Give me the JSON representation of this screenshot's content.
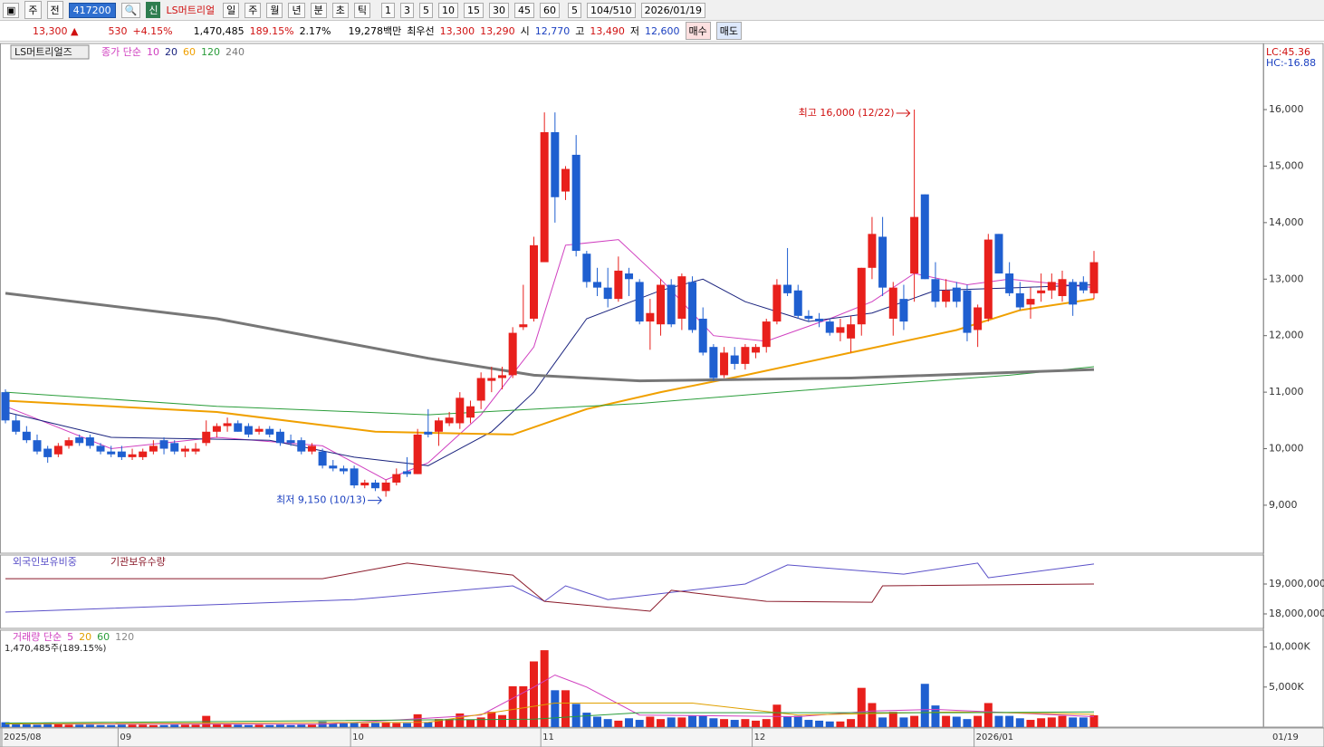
{
  "toolbar": {
    "market": "주",
    "prev": "전",
    "code": "417200",
    "badge": "신",
    "name": "LS머트리얼",
    "periods": [
      "일",
      "주",
      "월",
      "년",
      "분",
      "초",
      "틱"
    ],
    "intervals": [
      "1",
      "3",
      "5",
      "10",
      "15",
      "30",
      "45",
      "60"
    ],
    "count": "5",
    "range": "104/510",
    "date": "2026/01/19"
  },
  "quote": {
    "price": "13,300 ▲",
    "change": "530",
    "rate": "+4.15%",
    "volume": "1,470,485",
    "volume_ratio": "189.15%",
    "turnover": "2.17%",
    "amount": "19,278백만",
    "best_label": "최우선",
    "ask": "13,300",
    "bid": "13,290",
    "open_label": "시",
    "open": "12,770",
    "high_label": "고",
    "high": "13,490",
    "low_label": "저",
    "low": "12,600",
    "buy": "매수",
    "sell": "매도"
  },
  "chart_data": {
    "type": "candlestick",
    "title": "LS머트리얼즈",
    "ma_label": "종가 단순",
    "lc": "LC:45.36",
    "hc": "HC:-16.88",
    "x_labels": [
      {
        "index": 0,
        "label": "2025/08"
      },
      {
        "index": 11,
        "label": "09"
      },
      {
        "index": 33,
        "label": "10"
      },
      {
        "index": 51,
        "label": "11"
      },
      {
        "index": 71,
        "label": "12"
      },
      {
        "index": 92,
        "label": "2026/01"
      }
    ],
    "last_date": "01/19",
    "annotations": [
      {
        "text": "최고 16,000 (12/22)",
        "index": 86,
        "value": 16000,
        "side": "left"
      },
      {
        "text": "최저 9,150 (10/13)",
        "index": 36,
        "value": 9150,
        "side": "left"
      }
    ],
    "ylim": [
      8150,
      17170
    ],
    "yticks": [
      {
        "value": 9000,
        "label": "9,000"
      },
      {
        "value": 10000,
        "label": "10,000"
      },
      {
        "value": 11000,
        "label": "11,000"
      },
      {
        "value": 12000,
        "label": "12,000"
      },
      {
        "value": 13000,
        "label": "13,000"
      },
      {
        "value": 14000,
        "label": "14,000"
      },
      {
        "value": 15000,
        "label": "15,000"
      },
      {
        "value": 16000,
        "label": "16,000"
      }
    ],
    "up_color": "#e8201c",
    "down_color": "#1f5fd0",
    "ohlc": [
      [
        11000,
        11050,
        10450,
        10500
      ],
      [
        10500,
        10600,
        10250,
        10300
      ],
      [
        10300,
        10400,
        10100,
        10150
      ],
      [
        10150,
        10250,
        9900,
        9950
      ],
      [
        10000,
        10050,
        9750,
        9850
      ],
      [
        9900,
        10100,
        9850,
        10050
      ],
      [
        10050,
        10200,
        10000,
        10150
      ],
      [
        10200,
        10250,
        10050,
        10100
      ],
      [
        10200,
        10250,
        10000,
        10050
      ],
      [
        10050,
        10100,
        9900,
        9950
      ],
      [
        9950,
        10050,
        9850,
        9900
      ],
      [
        9950,
        10050,
        9800,
        9850
      ],
      [
        9850,
        10000,
        9800,
        9900
      ],
      [
        9850,
        10000,
        9800,
        9950
      ],
      [
        9950,
        10150,
        9900,
        10050
      ],
      [
        10150,
        10200,
        9900,
        10000
      ],
      [
        10100,
        10150,
        9900,
        9950
      ],
      [
        9950,
        10050,
        9850,
        10000
      ],
      [
        9950,
        10100,
        9900,
        10000
      ],
      [
        10100,
        10500,
        10050,
        10300
      ],
      [
        10300,
        10450,
        10200,
        10400
      ],
      [
        10400,
        10550,
        10300,
        10450
      ],
      [
        10450,
        10500,
        10300,
        10300
      ],
      [
        10400,
        10450,
        10200,
        10250
      ],
      [
        10300,
        10400,
        10250,
        10350
      ],
      [
        10350,
        10400,
        10200,
        10250
      ],
      [
        10300,
        10350,
        10050,
        10100
      ],
      [
        10150,
        10250,
        10050,
        10100
      ],
      [
        10150,
        10200,
        9900,
        9950
      ],
      [
        9950,
        10100,
        9900,
        10050
      ],
      [
        9950,
        10000,
        9650,
        9700
      ],
      [
        9700,
        9800,
        9600,
        9650
      ],
      [
        9650,
        9700,
        9550,
        9600
      ],
      [
        9650,
        9700,
        9300,
        9350
      ],
      [
        9350,
        9450,
        9300,
        9400
      ],
      [
        9400,
        9450,
        9250,
        9300
      ],
      [
        9250,
        9450,
        9150,
        9400
      ],
      [
        9400,
        9650,
        9350,
        9550
      ],
      [
        9600,
        9850,
        9500,
        9550
      ],
      [
        9550,
        10350,
        9550,
        10250
      ],
      [
        10300,
        10700,
        10200,
        10250
      ],
      [
        10300,
        10550,
        10050,
        10500
      ],
      [
        10450,
        10650,
        10400,
        10550
      ],
      [
        10450,
        11000,
        10350,
        10900
      ],
      [
        10550,
        10850,
        10450,
        10750
      ],
      [
        10850,
        11350,
        10700,
        11250
      ],
      [
        11200,
        11450,
        11000,
        11250
      ],
      [
        11250,
        11450,
        11050,
        11300
      ],
      [
        11300,
        12150,
        11250,
        12050
      ],
      [
        12150,
        12900,
        12100,
        12200
      ],
      [
        12300,
        13750,
        12250,
        13600
      ],
      [
        13300,
        15950,
        13300,
        15600
      ],
      [
        15600,
        15950,
        14000,
        14450
      ],
      [
        14550,
        15000,
        14400,
        14950
      ],
      [
        15200,
        15550,
        13400,
        13500
      ],
      [
        13450,
        13500,
        12850,
        12950
      ],
      [
        12950,
        13200,
        12700,
        12850
      ],
      [
        12850,
        13200,
        12500,
        12650
      ],
      [
        12650,
        13400,
        12600,
        13150
      ],
      [
        13100,
        13200,
        12700,
        13000
      ],
      [
        12950,
        13000,
        12200,
        12250
      ],
      [
        12250,
        12650,
        11750,
        12400
      ],
      [
        12200,
        13000,
        12000,
        12900
      ],
      [
        12900,
        13000,
        12150,
        12200
      ],
      [
        12300,
        13100,
        12100,
        13050
      ],
      [
        12950,
        13050,
        12050,
        12100
      ],
      [
        12300,
        12500,
        11650,
        11700
      ],
      [
        11800,
        11850,
        11200,
        11250
      ],
      [
        11300,
        11800,
        11250,
        11700
      ],
      [
        11650,
        11800,
        11400,
        11500
      ],
      [
        11500,
        11850,
        11400,
        11800
      ],
      [
        11700,
        11850,
        11600,
        11800
      ],
      [
        11800,
        12300,
        11700,
        12250
      ],
      [
        12250,
        13000,
        12200,
        12900
      ],
      [
        12900,
        13550,
        12700,
        12750
      ],
      [
        12800,
        12900,
        12300,
        12350
      ],
      [
        12350,
        12450,
        12250,
        12300
      ],
      [
        12300,
        12400,
        12150,
        12250
      ],
      [
        12250,
        12300,
        12000,
        12050
      ],
      [
        12050,
        12300,
        11900,
        12150
      ],
      [
        11950,
        12350,
        11700,
        12200
      ],
      [
        12200,
        13200,
        12000,
        13200
      ],
      [
        13200,
        14100,
        13000,
        13800
      ],
      [
        13750,
        14100,
        12700,
        12850
      ],
      [
        12300,
        12950,
        12000,
        12850
      ],
      [
        12650,
        12900,
        12100,
        12250
      ],
      [
        13100,
        16000,
        12600,
        14100
      ],
      [
        14500,
        14500,
        13000,
        13000
      ],
      [
        13000,
        13300,
        12500,
        12600
      ],
      [
        12600,
        13000,
        12500,
        12800
      ],
      [
        12850,
        12950,
        12500,
        12600
      ],
      [
        12800,
        12900,
        11900,
        12050
      ],
      [
        12100,
        12550,
        11800,
        12500
      ],
      [
        12300,
        13800,
        12250,
        13700
      ],
      [
        13800,
        13800,
        13100,
        13100
      ],
      [
        13100,
        13300,
        12700,
        12750
      ],
      [
        12750,
        12950,
        12450,
        12500
      ],
      [
        12550,
        12850,
        12300,
        12650
      ],
      [
        12750,
        13100,
        12600,
        12800
      ],
      [
        12800,
        13100,
        12650,
        12950
      ],
      [
        12700,
        13150,
        12600,
        13000
      ],
      [
        12950,
        13000,
        12350,
        12550
      ],
      [
        12950,
        13050,
        12750,
        12800
      ],
      [
        12750,
        13500,
        12650,
        13300
      ]
    ],
    "ma": [
      {
        "name": "10",
        "color": "#d040c0",
        "x": [
          0,
          10,
          20,
          30,
          36,
          40,
          45,
          50,
          53,
          58,
          62,
          67,
          72,
          78,
          82,
          86,
          91,
          95,
          103
        ],
        "values": [
          10750,
          10000,
          10200,
          10050,
          9450,
          9750,
          10600,
          11800,
          13600,
          13700,
          13000,
          12000,
          11900,
          12300,
          12600,
          13100,
          12900,
          13000,
          12850
        ]
      },
      {
        "name": "20",
        "color": "#1a237e",
        "x": [
          0,
          10,
          25,
          33,
          40,
          46,
          50,
          55,
          62,
          66,
          70,
          76,
          82,
          88,
          96,
          103
        ],
        "values": [
          10650,
          10200,
          10150,
          9850,
          9700,
          10300,
          11000,
          12300,
          12800,
          13000,
          12600,
          12250,
          12400,
          12800,
          12850,
          12900
        ]
      },
      {
        "name": "60",
        "color": "#f0a000",
        "x": [
          0,
          20,
          35,
          48,
          55,
          62,
          70,
          80,
          90,
          96,
          103
        ],
        "values": [
          10850,
          10650,
          10300,
          10250,
          10700,
          11000,
          11300,
          11700,
          12100,
          12450,
          12650
        ]
      },
      {
        "name": "120",
        "color": "#2a9d3a",
        "x": [
          0,
          20,
          40,
          60,
          80,
          95,
          103
        ],
        "values": [
          11000,
          10750,
          10600,
          10800,
          11100,
          11300,
          11450
        ]
      },
      {
        "name": "240",
        "color": "#777777",
        "x": [
          0,
          20,
          40,
          50,
          60,
          80,
          103
        ],
        "values": [
          12750,
          12300,
          11600,
          11300,
          11200,
          11250,
          11400
        ]
      }
    ],
    "holdings": {
      "ylim": [
        17515000,
        19970000
      ],
      "yticks": [
        {
          "value": 18000000,
          "label": "18,000,000"
        },
        {
          "value": 19000000,
          "label": "19,000,000"
        }
      ],
      "series": [
        {
          "name": "외국인보유비중",
          "color": "#5a50c8",
          "x": [
            0,
            33,
            48,
            51,
            53,
            57,
            70,
            74,
            85,
            92,
            93,
            103
          ],
          "values": [
            18060000,
            18480000,
            18940000,
            18420000,
            18940000,
            18480000,
            19000000,
            19640000,
            19330000,
            19700000,
            19210000,
            19670000
          ]
        },
        {
          "name": "기관보유수량",
          "color": "#8a1a2a",
          "x": [
            0,
            30,
            38,
            48,
            51,
            61,
            63,
            72,
            82,
            83,
            103
          ],
          "values": [
            19180000,
            19180000,
            19700000,
            19300000,
            18420000,
            18090000,
            18790000,
            18420000,
            18390000,
            18940000,
            19000000
          ]
        }
      ]
    },
    "volume": {
      "label": "거래량 단순",
      "last": "1,470,485주(189.15%)",
      "ylim": [
        0,
        12100
      ],
      "yticks": [
        {
          "value": 5000,
          "label": "5,000K"
        },
        {
          "value": 10000,
          "label": "10,000K"
        }
      ],
      "values": [
        600,
        400,
        350,
        300,
        500,
        350,
        300,
        300,
        300,
        250,
        250,
        300,
        300,
        300,
        250,
        250,
        300,
        300,
        300,
        1400,
        400,
        350,
        300,
        250,
        300,
        250,
        300,
        250,
        300,
        300,
        700,
        400,
        450,
        500,
        450,
        500,
        600,
        500,
        500,
        1600,
        600,
        1000,
        1000,
        1700,
        900,
        1200,
        1900,
        1500,
        5100,
        5100,
        8200,
        9600,
        4600,
        4600,
        2900,
        1800,
        1300,
        1000,
        800,
        1100,
        900,
        1300,
        1000,
        1200,
        1200,
        1400,
        1400,
        1100,
        1000,
        900,
        1000,
        800,
        1000,
        2800,
        1300,
        1400,
        900,
        800,
        700,
        700,
        1000,
        4900,
        3000,
        1200,
        1900,
        1200,
        1400,
        5400,
        2700,
        1400,
        1300,
        1000,
        1400,
        3000,
        1400,
        1400,
        1100,
        900,
        1100,
        1200,
        1400,
        1200,
        1200,
        1470
      ],
      "ma": [
        {
          "name": "5",
          "color": "#d040c0",
          "x": [
            0,
            30,
            45,
            50,
            52,
            55,
            60,
            75,
            82,
            88,
            95,
            103
          ],
          "values": [
            400,
            350,
            1500,
            5000,
            6500,
            5000,
            1500,
            1300,
            2000,
            2200,
            1800,
            1300
          ]
        },
        {
          "name": "20",
          "color": "#e0a000",
          "x": [
            0,
            40,
            52,
            65,
            75,
            90,
            103
          ],
          "values": [
            400,
            600,
            3000,
            3000,
            1500,
            1900,
            1600
          ]
        },
        {
          "name": "60",
          "color": "#2a9d3a",
          "x": [
            0,
            50,
            60,
            90,
            103
          ],
          "values": [
            500,
            1000,
            1800,
            1800,
            1900
          ]
        },
        {
          "name": "120",
          "color": "#888888",
          "x": [],
          "values": []
        }
      ]
    }
  }
}
